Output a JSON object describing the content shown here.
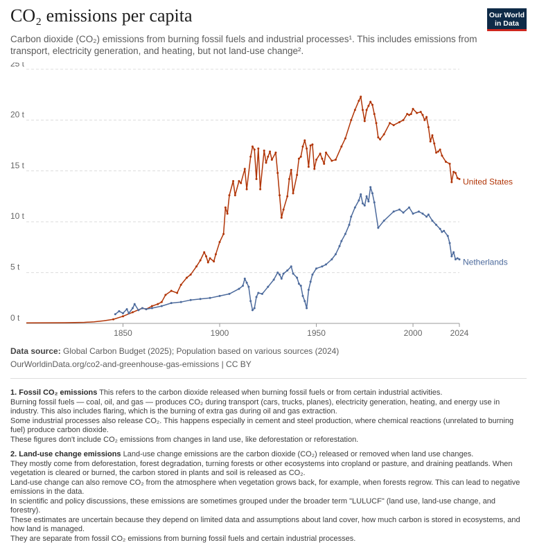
{
  "header": {
    "title": "CO₂ emissions per capita",
    "subtitle": "Carbon dioxide (CO₂) emissions from burning fossil fuels and industrial processes¹. This includes emissions from transport, electricity generation, and heating, but not land-use change².",
    "logo_line1": "Our World",
    "logo_line2": "in Data"
  },
  "colors": {
    "united_states": "#b13507",
    "netherlands": "#4c6a9c",
    "logo_bg": "#0e2a47",
    "logo_accent": "#ce261e"
  },
  "chart_data": {
    "type": "line",
    "ylim": [
      0,
      25
    ],
    "xlim": [
      1800,
      2024
    ],
    "y_ticks": [
      0,
      5,
      10,
      15,
      20,
      25
    ],
    "y_tick_labels": [
      "0 t",
      "5 t",
      "10 t",
      "15 t",
      "20 t",
      "25 t"
    ],
    "x_ticks": [
      1850,
      1900,
      1950,
      2000,
      2024
    ],
    "x_tick_labels": [
      "1850",
      "1900",
      "1950",
      "2000",
      "2024"
    ],
    "grid": "horizontal dashed",
    "legend": "inline labels at line ends",
    "series": [
      {
        "name": "United States",
        "x": [
          1800,
          1810,
          1820,
          1830,
          1835,
          1840,
          1845,
          1850,
          1855,
          1860,
          1862,
          1865,
          1868,
          1870,
          1872,
          1875,
          1878,
          1880,
          1883,
          1885,
          1888,
          1890,
          1892,
          1893,
          1894,
          1895,
          1897,
          1898,
          1900,
          1902,
          1903,
          1904,
          1905,
          1907,
          1908,
          1910,
          1911,
          1913,
          1914,
          1916,
          1917,
          1918,
          1919,
          1920,
          1921,
          1923,
          1924,
          1925,
          1926,
          1927,
          1929,
          1930,
          1931,
          1932,
          1933,
          1935,
          1936,
          1937,
          1938,
          1940,
          1941,
          1942,
          1943,
          1944,
          1945,
          1946,
          1947,
          1948,
          1949,
          1950,
          1952,
          1953,
          1954,
          1955,
          1958,
          1960,
          1963,
          1965,
          1968,
          1970,
          1972,
          1973,
          1974,
          1975,
          1976,
          1977,
          1978,
          1979,
          1980,
          1981,
          1982,
          1983,
          1985,
          1988,
          1990,
          1993,
          1995,
          1997,
          1998,
          1999,
          2000,
          2002,
          2004,
          2005,
          2006,
          2007,
          2008,
          2009,
          2010,
          2011,
          2012,
          2013,
          2014,
          2015,
          2017,
          2019,
          2020,
          2021,
          2022,
          2023,
          2024
        ],
        "values": [
          0.05,
          0.06,
          0.07,
          0.1,
          0.15,
          0.25,
          0.4,
          0.7,
          1.1,
          1.5,
          1.4,
          1.7,
          1.9,
          2.1,
          2.8,
          3.2,
          3.0,
          3.8,
          4.5,
          4.8,
          5.6,
          6.2,
          7.0,
          6.6,
          6.0,
          6.4,
          6.1,
          6.8,
          8.0,
          8.8,
          11.4,
          10.8,
          12.6,
          14.0,
          12.6,
          14.0,
          13.8,
          15.2,
          13.2,
          16.4,
          17.4,
          17.1,
          14.2,
          17.2,
          13.2,
          17.0,
          15.8,
          16.4,
          16.9,
          16.1,
          16.8,
          14.8,
          12.6,
          10.4,
          11.2,
          12.5,
          14.2,
          15.1,
          12.8,
          14.6,
          16.2,
          16.4,
          17.4,
          18.0,
          17.2,
          15.4,
          17.5,
          17.6,
          15.2,
          16.1,
          16.7,
          16.2,
          15.7,
          16.8,
          16.0,
          16.1,
          17.4,
          18.2,
          20.0,
          21.0,
          21.9,
          22.3,
          21.0,
          19.9,
          21.0,
          21.4,
          21.8,
          21.5,
          20.6,
          19.7,
          18.3,
          18.1,
          18.6,
          19.7,
          19.5,
          19.8,
          20.0,
          20.6,
          20.5,
          20.6,
          21.1,
          20.7,
          20.8,
          20.5,
          20.0,
          20.3,
          19.3,
          17.9,
          18.5,
          17.7,
          16.8,
          16.9,
          17.1,
          16.5,
          15.9,
          15.7,
          13.9,
          14.9,
          14.8,
          14.3,
          14.2
        ]
      },
      {
        "name": "Netherlands",
        "x": [
          1846,
          1848,
          1850,
          1852,
          1853,
          1855,
          1856,
          1858,
          1860,
          1862,
          1865,
          1870,
          1875,
          1880,
          1885,
          1890,
          1895,
          1900,
          1905,
          1910,
          1912,
          1913,
          1914,
          1915,
          1916,
          1917,
          1918,
          1919,
          1920,
          1922,
          1925,
          1928,
          1930,
          1931,
          1932,
          1933,
          1935,
          1937,
          1938,
          1940,
          1941,
          1942,
          1943,
          1944,
          1945,
          1946,
          1947,
          1948,
          1950,
          1953,
          1955,
          1958,
          1960,
          1962,
          1963,
          1965,
          1967,
          1968,
          1970,
          1972,
          1973,
          1974,
          1975,
          1976,
          1977,
          1978,
          1979,
          1980,
          1982,
          1985,
          1990,
          1993,
          1995,
          1998,
          2000,
          2003,
          2005,
          2007,
          2008,
          2010,
          2012,
          2014,
          2015,
          2016,
          2018,
          2019,
          2020,
          2021,
          2022,
          2023,
          2024
        ],
        "values": [
          0.9,
          1.2,
          1.0,
          1.4,
          1.0,
          1.5,
          1.9,
          1.3,
          1.5,
          1.4,
          1.5,
          1.7,
          2.0,
          2.1,
          2.3,
          2.4,
          2.5,
          2.7,
          2.9,
          3.4,
          3.7,
          4.4,
          4.0,
          3.6,
          2.2,
          1.3,
          1.5,
          2.6,
          3.0,
          2.9,
          3.6,
          4.3,
          5.0,
          4.8,
          4.4,
          4.9,
          5.2,
          5.6,
          4.9,
          4.5,
          3.9,
          3.7,
          2.7,
          2.2,
          1.5,
          3.3,
          4.1,
          4.8,
          5.4,
          5.6,
          5.8,
          6.3,
          6.8,
          7.6,
          8.1,
          8.8,
          9.7,
          10.5,
          11.4,
          12.1,
          12.7,
          11.8,
          11.6,
          12.5,
          12.0,
          13.4,
          12.8,
          11.9,
          9.4,
          10.1,
          11.0,
          11.2,
          10.9,
          11.4,
          10.8,
          11.0,
          10.8,
          10.5,
          10.7,
          10.1,
          9.7,
          9.3,
          9.0,
          9.1,
          8.6,
          7.9,
          6.6,
          7.0,
          6.3,
          6.4,
          6.3
        ]
      }
    ]
  },
  "source": {
    "label": "Data source:",
    "text": "Global Carbon Budget (2025); Population based on various sources (2024)",
    "url": "OurWorldinData.org/co2-and-greenhouse-gas-emissions | CC BY"
  },
  "notes": {
    "n1_title": "1. Fossil CO₂ emissions",
    "n1_lead": "This refers to the carbon dioxide released when burning fossil fuels or from certain industrial activities.",
    "n1_p2": "Burning fossil fuels — coal, oil, and gas — produces CO₂ during transport (cars, trucks, planes), electricity generation, heating, and energy use in industry. This also includes flaring, which is the burning of extra gas during oil and gas extraction.",
    "n1_p3": "Some industrial processes also release CO₂. This happens especially in cement and steel production, where chemical reactions (unrelated to burning fuel) produce carbon dioxide.",
    "n1_p4": "These figures don't include CO₂ emissions from changes in land use, like deforestation or reforestation.",
    "n2_title": "2. Land-use change emissions",
    "n2_lead": "Land-use change emissions are the carbon dioxide (CO₂) released or removed when land use changes.",
    "n2_p2": "They mostly come from deforestation, forest degradation, turning forests or other ecosystems into cropland or pasture, and draining peatlands. When vegetation is cleared or burned, the carbon stored in plants and soil is released as CO₂.",
    "n2_p3": "Land-use change can also remove CO₂ from the atmosphere when vegetation grows back, for example, when forests regrow. This can lead to negative emissions in the data.",
    "n2_p4": "In scientific and policy discussions, these emissions are sometimes grouped under the broader term \"LULUCF\" (land use, land-use change, and forestry).",
    "n2_p5": "These estimates are uncertain because they depend on limited data and assumptions about land cover, how much carbon is stored in ecosystems, and how land is managed.",
    "n2_p6": "They are separate from fossil CO₂ emissions from burning fossil fuels and certain industrial processes."
  }
}
